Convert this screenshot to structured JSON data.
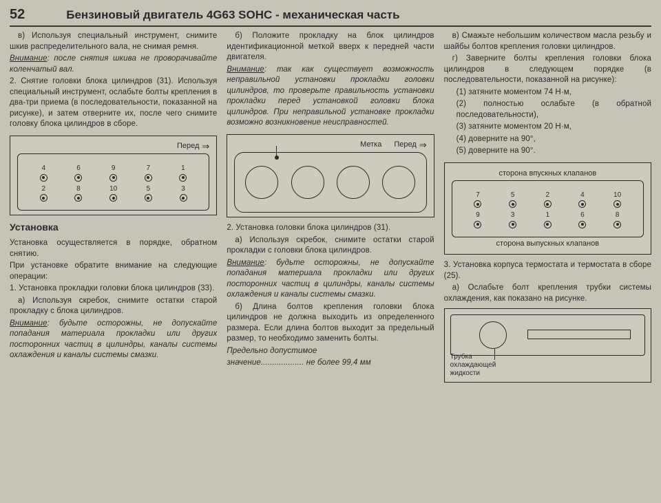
{
  "page_number": "52",
  "title": "Бензиновый двигатель 4G63 SOHC - механическая часть",
  "col1": {
    "p1": "в) Используя специальный инстру­мент, снимите шкив распредели­тельного вала, не снимая ремня.",
    "p2_lead": "Внимание",
    "p2": ": после снятия шкива не проворачивайте коленчатый вал.",
    "p3": "2. Снятие головки блока цилиндров (31). Используя специальный инструмент, ослабьте болты крепления в два-три приема (в последовательности, пока­занной на рисунке), и затем отверните их, после чего снимите головку блока цилиндров в сборе.",
    "dia1_label": "Перед",
    "dia1_top": [
      "4",
      "6",
      "9",
      "7",
      "1"
    ],
    "dia1_bot": [
      "2",
      "8",
      "10",
      "5",
      "3"
    ],
    "sec_title": "Установка",
    "p4": "Установка осуществляется в порядке, обратном снятию.",
    "p5": "При установке обратите внимание на следующие операции:",
    "p6": "1. Установка прокладки головки блока цилиндров (33).",
    "p7": "а) Используя скребок, снимите ос­татки старой прокладку с блока ци­линдров.",
    "p8_lead": "Внимание",
    "p8": ": будьте осторожны, не до­пускайте попадания материала про­кладки или других посторонних час­тиц в цилиндры, каналы системы ох­лаждения и каналы системы смазки."
  },
  "col2": {
    "p1": "б) Положите прокладку на блок ци­линдров идентификационной меткой вверх к передней части двигателя.",
    "p2_lead": "Внимание",
    "p2": ": так как существует воз­можность неправильной установки прокладки головки цилиндров, то проверьте правильность установки прокладки перед установкой головки блока цилиндров. При неправильной установке прокладки возможно воз­никновение неисправностей.",
    "dia2_mark": "Метка",
    "dia2_forward": "Перед",
    "p3": "2. Установка головки блока цилиндров (31).",
    "p4": "а) Используя скребок, снимите ос­татки старой прокладки с головки блока цилиндров.",
    "p5_lead": "Внимание",
    "p5": ": будьте осторожны, не до­пускайте попадания материала про­кладки или других посторонних час­тиц в цилиндры, каналы системы ох­лаждения и каналы системы смазки.",
    "p6": "б) Длина болтов крепления головки блока цилиндров не должна выхо­дить из определенного размера. Ес­ли длина болтов выходит за пре­дельный размер, то необходимо за­менить болты.",
    "p7a": "Предельно допустимое",
    "p7b": "значение................... не более 99,4 мм"
  },
  "col3": {
    "p1": "в) Смажьте небольшим количеством масла резьбу и шайбы болтов креп­ления головки цилиндров.",
    "p2": "г) Заверните болты крепления го­ловки блока цилиндров в следую­щем порядке (в последовательнос­ти, показанной на рисунке):",
    "p2_1": "(1) затяните моментом 74 Н·м,",
    "p2_2": "(2) полностью ослабьте (в обрат­ной последовательности),",
    "p2_3": "(3) затяните моментом 20 Н·м,",
    "p2_4": "(4) доверните на 90°,",
    "p2_5": "(5) доверните на 90°.",
    "dia3_intake": "сторона впускных клапанов",
    "dia3_exhaust": "сторона выпускных клапанов",
    "dia3_top": [
      "7",
      "5",
      "2",
      "4",
      "10"
    ],
    "dia3_bot": [
      "9",
      "3",
      "1",
      "6",
      "8"
    ],
    "p3": "3. Установка корпуса термостата и термостата в сборе (25).",
    "p4": "а) Ослабьте болт крепления трубки системы охлаждения, как показано на рисунке.",
    "thermo_label1": "Трубка",
    "thermo_label2": "охлаждающей",
    "thermo_label3": "жидкости"
  }
}
